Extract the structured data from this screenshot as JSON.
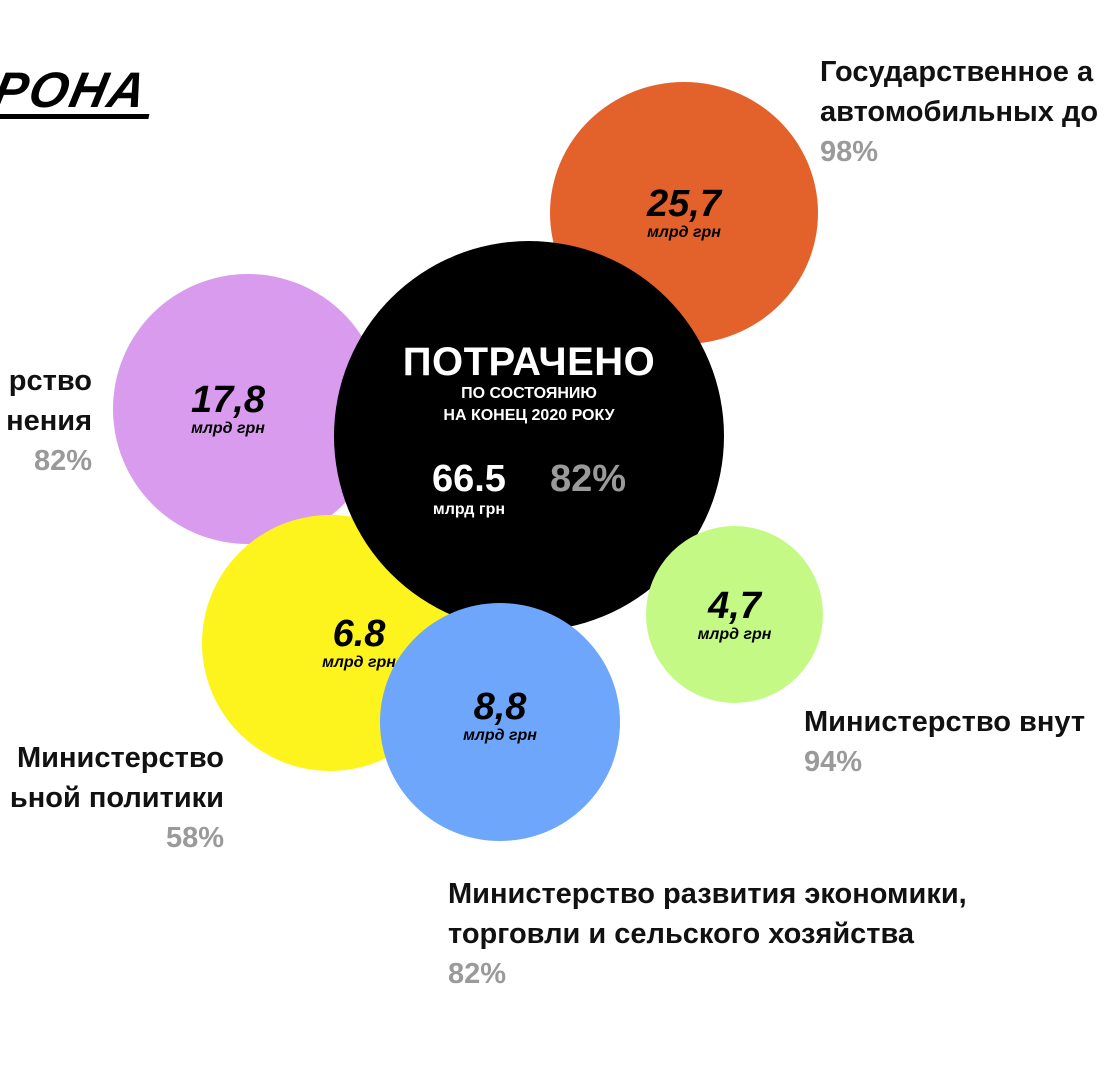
{
  "logo": "РОНА",
  "chart_data": {
    "type": "bubble",
    "center": {
      "title": "ПОТРАЧЕНО",
      "subtitle_1": "ПО СОСТОЯНИЮ",
      "subtitle_2": "НА КОНЕЦ 2020 РОКУ",
      "value": "66.5",
      "unit": "млрд грн",
      "percent": "82%"
    },
    "bubbles": [
      {
        "value": "25,7",
        "unit": "млрд грн",
        "color": "#e3622c",
        "label_1": "Государственное а",
        "label_2": "автомобильных до",
        "percent": "98%"
      },
      {
        "value": "17,8",
        "unit": "млрд грн",
        "color": "#d99bee",
        "label_1": "рство",
        "label_2": "нения",
        "percent": "82%"
      },
      {
        "value": "6.8",
        "unit": "млрд грн",
        "color": "#fef41d",
        "label_1": "Министерство",
        "label_2": "ьной политики",
        "percent": "58%"
      },
      {
        "value": "8,8",
        "unit": "млрд грн",
        "color": "#6ea6fb",
        "label_1": "Министерство развития экономики,",
        "label_2": "торговли и сельского хозяйства",
        "percent": "82%"
      },
      {
        "value": "4,7",
        "unit": "млрд грн",
        "color": "#c5f986",
        "label_1": "Министерство внут",
        "label_2": "",
        "percent": "94%"
      }
    ]
  }
}
